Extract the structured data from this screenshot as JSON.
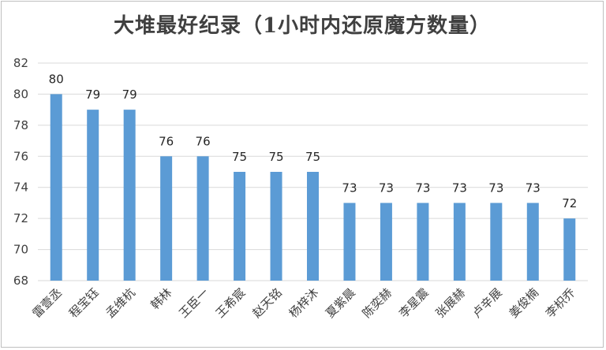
{
  "chart_data": {
    "type": "bar",
    "title": "大堆最好纪录（1小时内还原魔方数量）",
    "xlabel": "",
    "ylabel": "",
    "categories": [
      "雷壹丞",
      "程宝钰",
      "孟维杭",
      "韩林",
      "王臣一",
      "王希宸",
      "赵天铭",
      "杨梓沐",
      "夏紫晨",
      "陈奕赫",
      "李星震",
      "张展赫",
      "卢辛展",
      "姜俊楠",
      "李枳乔"
    ],
    "values": [
      80,
      79,
      79,
      76,
      76,
      75,
      75,
      75,
      73,
      73,
      73,
      73,
      73,
      73,
      72
    ],
    "ylim": [
      68,
      82
    ],
    "yticks": [
      68,
      70,
      72,
      74,
      76,
      78,
      80,
      82
    ],
    "grid": true,
    "legend": "none",
    "bar_color": "#5b9bd5",
    "grid_color": "#d9d9d9"
  }
}
